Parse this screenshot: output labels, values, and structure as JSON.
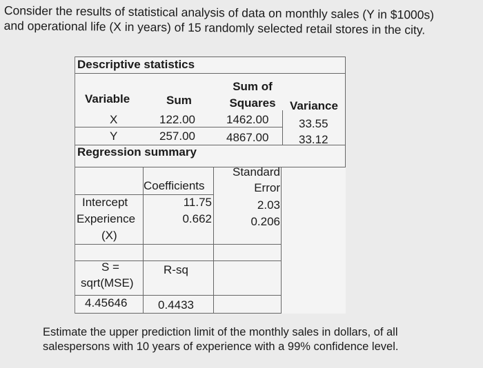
{
  "intro": {
    "line1": "Consider the results of statistical analysis of data on monthly sales (Y in $1000s)",
    "line2": "and operational life (X in years) of 15 randomly selected retail stores in the city."
  },
  "descriptive": {
    "title": "Descriptive statistics",
    "headers": {
      "variable": "Variable",
      "sum": "Sum",
      "sumsq_line1": "Sum of",
      "sumsq_line2": "Squares",
      "variance": "Variance"
    },
    "rows": [
      {
        "variable": "X",
        "sum": "122.00",
        "sumsq": "1462.00",
        "variance": "33.55"
      },
      {
        "variable": "Y",
        "sum": "257.00",
        "sumsq": "4867.00",
        "variance": "33.12"
      }
    ]
  },
  "regression": {
    "title": "Regression summary",
    "headers": {
      "coefficients": "Coefficients",
      "se_line1": "Standard",
      "se_line2": "Error"
    },
    "rows": [
      {
        "name": "Intercept",
        "coef": "11.75",
        "se": "2.03"
      },
      {
        "name_line1": "Experience",
        "name_line2": "(X)",
        "coef": "0.662",
        "se": "0.206"
      }
    ],
    "fit": {
      "s_line1": "S =",
      "s_line2": "sqrt(MSE)",
      "rsq_label": "R-sq",
      "s_value": "4.45646",
      "rsq_value": "0.4433"
    }
  },
  "question": {
    "line1": "Estimate the upper prediction limit of the monthly sales in dollars, of all",
    "line2": "salespersons with 10 years of experience with a 99% confidence level."
  }
}
